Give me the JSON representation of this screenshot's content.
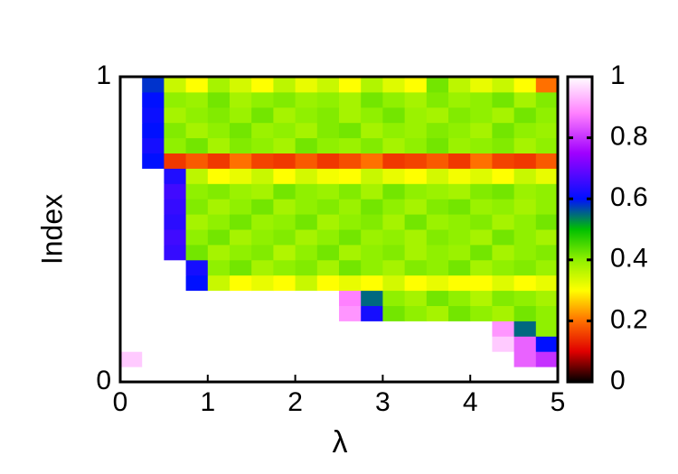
{
  "chart_data": {
    "type": "heatmap",
    "xlabel": "λ",
    "ylabel": "Index",
    "xbins": [
      0,
      0.25,
      0.5,
      0.75,
      1,
      1.25,
      1.5,
      1.75,
      2,
      2.25,
      2.5,
      2.75,
      3,
      3.25,
      3.5,
      3.75,
      4,
      4.25,
      4.5,
      4.75,
      5
    ],
    "ybins": [
      0,
      0.05,
      0.1,
      0.15,
      0.2,
      0.25,
      0.3,
      0.35,
      0.4,
      0.45,
      0.5,
      0.55,
      0.6,
      0.65,
      0.7,
      0.75,
      0.8,
      0.85,
      0.9,
      0.95,
      1
    ],
    "xlim": [
      0,
      5
    ],
    "ylim": [
      0,
      1
    ],
    "xticks": [
      0,
      1,
      2,
      3,
      4,
      5
    ],
    "yticks": [
      0,
      1
    ],
    "zlim": [
      0,
      1
    ],
    "zticks": [
      0,
      0.2,
      0.4,
      0.6,
      0.8,
      1
    ],
    "colorscale": [
      [
        0,
        "#000000"
      ],
      [
        0.1,
        "#e00000"
      ],
      [
        0.2,
        "#ff7000"
      ],
      [
        0.3,
        "#ffff00"
      ],
      [
        0.4,
        "#90f000"
      ],
      [
        0.5,
        "#00c000"
      ],
      [
        0.6,
        "#0010ff"
      ],
      [
        0.75,
        "#a000ff"
      ],
      [
        0.88,
        "#ff80ff"
      ],
      [
        1,
        "#ffffff"
      ]
    ],
    "z": [
      [
        1,
        1,
        1,
        1,
        1,
        1,
        1,
        1,
        1,
        1,
        1,
        1,
        1,
        1,
        1,
        1,
        1,
        1,
        1,
        1
      ],
      [
        0.95,
        1,
        1,
        1,
        1,
        1,
        1,
        1,
        1,
        1,
        1,
        1,
        1,
        1,
        1,
        1,
        1,
        1,
        0.85,
        0.8
      ],
      [
        1,
        1,
        1,
        1,
        1,
        1,
        1,
        1,
        1,
        1,
        1,
        1,
        1,
        1,
        1,
        1,
        1,
        0.95,
        0.85,
        0.6
      ],
      [
        1,
        1,
        1,
        1,
        1,
        1,
        1,
        1,
        1,
        1,
        1,
        1,
        1,
        1,
        1,
        1,
        1,
        0.9,
        0.55,
        0.4
      ],
      [
        1,
        1,
        1,
        1,
        1,
        1,
        1,
        1,
        1,
        1,
        0.9,
        0.62,
        0.42,
        0.4,
        0.38,
        0.42,
        0.4,
        0.38,
        0.42,
        0.4
      ],
      [
        1,
        1,
        1,
        1,
        1,
        1,
        1,
        1,
        1,
        1,
        0.88,
        0.55,
        0.4,
        0.38,
        0.42,
        0.4,
        0.37,
        0.41,
        0.4,
        0.38
      ],
      [
        1,
        1,
        1,
        0.6,
        0.35,
        0.3,
        0.32,
        0.3,
        0.35,
        0.3,
        0.32,
        0.3,
        0.34,
        0.3,
        0.32,
        0.3,
        0.3,
        0.33,
        0.3,
        0.32
      ],
      [
        1,
        1,
        1,
        0.62,
        0.4,
        0.42,
        0.38,
        0.4,
        0.41,
        0.38,
        0.42,
        0.4,
        0.38,
        0.41,
        0.4,
        0.42,
        0.38,
        0.4,
        0.41,
        0.39
      ],
      [
        1,
        1,
        0.65,
        0.42,
        0.38,
        0.4,
        0.41,
        0.37,
        0.4,
        0.42,
        0.38,
        0.4,
        0.41,
        0.38,
        0.4,
        0.39,
        0.42,
        0.38,
        0.4,
        0.41
      ],
      [
        1,
        1,
        0.66,
        0.4,
        0.42,
        0.38,
        0.4,
        0.41,
        0.38,
        0.4,
        0.42,
        0.39,
        0.4,
        0.38,
        0.41,
        0.4,
        0.38,
        0.42,
        0.4,
        0.38
      ],
      [
        1,
        1,
        0.64,
        0.38,
        0.4,
        0.42,
        0.39,
        0.4,
        0.42,
        0.38,
        0.4,
        0.41,
        0.38,
        0.42,
        0.39,
        0.4,
        0.41,
        0.38,
        0.4,
        0.42
      ],
      [
        1,
        1,
        0.65,
        0.41,
        0.38,
        0.4,
        0.42,
        0.38,
        0.4,
        0.41,
        0.39,
        0.42,
        0.4,
        0.38,
        0.41,
        0.42,
        0.39,
        0.4,
        0.38,
        0.4
      ],
      [
        1,
        1,
        0.66,
        0.4,
        0.41,
        0.39,
        0.38,
        0.42,
        0.4,
        0.39,
        0.41,
        0.38,
        0.42,
        0.4,
        0.39,
        0.38,
        0.41,
        0.42,
        0.39,
        0.4
      ],
      [
        1,
        1,
        0.63,
        0.36,
        0.3,
        0.32,
        0.35,
        0.3,
        0.34,
        0.31,
        0.3,
        0.35,
        0.32,
        0.3,
        0.34,
        0.31,
        0.33,
        0.3,
        0.35,
        0.32
      ],
      [
        1,
        0.6,
        0.15,
        0.18,
        0.15,
        0.2,
        0.16,
        0.15,
        0.18,
        0.15,
        0.17,
        0.2,
        0.15,
        0.16,
        0.18,
        0.15,
        0.2,
        0.16,
        0.15,
        0.18
      ],
      [
        1,
        0.62,
        0.4,
        0.42,
        0.38,
        0.41,
        0.4,
        0.38,
        0.42,
        0.4,
        0.39,
        0.41,
        0.38,
        0.4,
        0.42,
        0.39,
        0.4,
        0.41,
        0.38,
        0.4
      ],
      [
        1,
        0.6,
        0.41,
        0.38,
        0.4,
        0.42,
        0.39,
        0.4,
        0.38,
        0.41,
        0.42,
        0.38,
        0.4,
        0.39,
        0.41,
        0.4,
        0.38,
        0.42,
        0.4,
        0.39
      ],
      [
        1,
        0.61,
        0.38,
        0.4,
        0.41,
        0.39,
        0.42,
        0.38,
        0.4,
        0.41,
        0.38,
        0.4,
        0.42,
        0.39,
        0.38,
        0.41,
        0.4,
        0.38,
        0.42,
        0.4
      ],
      [
        1,
        0.6,
        0.4,
        0.39,
        0.42,
        0.38,
        0.4,
        0.41,
        0.39,
        0.4,
        0.38,
        0.42,
        0.4,
        0.38,
        0.41,
        0.39,
        0.4,
        0.42,
        0.38,
        0.41
      ],
      [
        1,
        0.58,
        0.35,
        0.3,
        0.38,
        0.34,
        0.3,
        0.36,
        0.32,
        0.35,
        0.3,
        0.37,
        0.33,
        0.3,
        0.42,
        0.36,
        0.32,
        0.35,
        0.3,
        0.2
      ]
    ]
  }
}
